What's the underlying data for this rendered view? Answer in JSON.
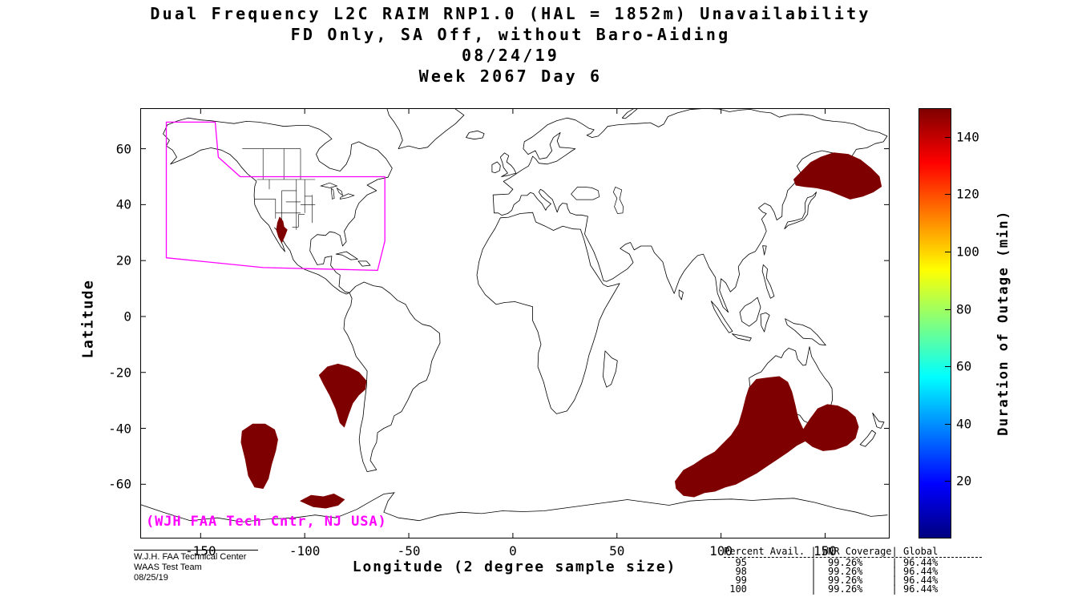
{
  "header": {
    "lines": [
      "Dual Frequency L2C RAIM RNP1.0 (HAL = 1852m) Unavailability",
      "FD Only, SA Off, without Baro-Aiding",
      "08/24/19",
      "Week 2067 Day 6"
    ]
  },
  "axes": {
    "xlabel": "Longitude (2 degree sample size)",
    "ylabel": "Latitude",
    "x_ticks": [
      -150,
      -100,
      -50,
      0,
      50,
      100,
      150
    ],
    "y_ticks": [
      60,
      40,
      20,
      0,
      -20,
      -40,
      -60
    ],
    "x_range": [
      -179,
      181
    ],
    "y_range": [
      -79.4,
      74.5
    ]
  },
  "colorbar": {
    "label": "Duration of Outage (min)",
    "ticks": [
      20,
      40,
      60,
      80,
      100,
      120,
      140
    ],
    "range": [
      0,
      150
    ],
    "colors": [
      "#00007F",
      "#0000FF",
      "#00FFFF",
      "#FFFF00",
      "#FF0000",
      "#7F0000"
    ],
    "stops_pct": [
      0,
      12.5,
      37.5,
      62.5,
      87.5,
      100
    ]
  },
  "annotations": {
    "credit": "(WJH FAA Tech Cntr, NJ USA)",
    "credit_color": "#FF00FF"
  },
  "footer": {
    "left_lines": [
      "W.J.H. FAA Technical Center",
      "WAAS Test Team",
      "08/25/19"
    ],
    "table": {
      "headers": [
        "Percent Avail.",
        "WNR Coverage",
        "Global"
      ],
      "rows": [
        [
          "95",
          "99.26%",
          "96.44%"
        ],
        [
          "98",
          "99.26%",
          "96.44%"
        ],
        [
          "99",
          "99.26%",
          "96.44%"
        ],
        [
          "100",
          "99.26%",
          "96.44%"
        ]
      ]
    }
  },
  "chart_data": {
    "type": "map",
    "title": "Dual Frequency L2C RAIM RNP1.0 (HAL = 1852m) Unavailability",
    "subtitle": "FD Only, SA Off, without Baro-Aiding",
    "date": "08/24/19",
    "week_day": "Week 2067 Day 6",
    "legend": "Duration of Outage (min), jet colormap 0-150",
    "outage_color": "#7F0000",
    "outage_value_min_minutes": 140,
    "coverage_boundary_color": "#FF00FF",
    "coverage_boundary_lonlat": [
      [
        -166.5,
        69.5
      ],
      [
        -143,
        69.5
      ],
      [
        -141.5,
        57
      ],
      [
        -131,
        50
      ],
      [
        -61.5,
        50
      ],
      [
        -61.5,
        27
      ],
      [
        -65,
        16.5
      ],
      [
        -120,
        17.5
      ],
      [
        -166.5,
        21
      ]
    ],
    "outage_regions_lonlat": [
      {
        "name": "arizona-sonora",
        "points": [
          [
            -112,
            35.5
          ],
          [
            -110.5,
            34
          ],
          [
            -110,
            32
          ],
          [
            -108.5,
            31
          ],
          [
            -109.5,
            29
          ],
          [
            -111,
            26.5
          ],
          [
            -112.5,
            28.5
          ],
          [
            -113.5,
            31
          ],
          [
            -113,
            33.5
          ]
        ]
      },
      {
        "name": "northwest-pacific-kamchatka",
        "points": [
          [
            135,
            49
          ],
          [
            139,
            52
          ],
          [
            143,
            55
          ],
          [
            148,
            57
          ],
          [
            154,
            58.5
          ],
          [
            161,
            58
          ],
          [
            167,
            56
          ],
          [
            172,
            53
          ],
          [
            176,
            50
          ],
          [
            177,
            46.5
          ],
          [
            173,
            44.5
          ],
          [
            168,
            43
          ],
          [
            162,
            42
          ],
          [
            157,
            43.5
          ],
          [
            152,
            45
          ],
          [
            146,
            46
          ],
          [
            140,
            46.5
          ],
          [
            136,
            47
          ]
        ]
      },
      {
        "name": "southeast-pacific",
        "points": [
          [
            -93,
            -21
          ],
          [
            -89,
            -18
          ],
          [
            -84,
            -17
          ],
          [
            -79,
            -18
          ],
          [
            -74,
            -20
          ],
          [
            -70.5,
            -23
          ],
          [
            -71,
            -26
          ],
          [
            -74,
            -28
          ],
          [
            -77,
            -31
          ],
          [
            -79,
            -35
          ],
          [
            -81,
            -39.5
          ],
          [
            -83,
            -38
          ],
          [
            -85,
            -33
          ],
          [
            -88,
            -28
          ],
          [
            -91,
            -24
          ]
        ]
      },
      {
        "name": "south-pacific",
        "points": [
          [
            -130,
            -41
          ],
          [
            -125,
            -38.5
          ],
          [
            -119,
            -38.5
          ],
          [
            -114.5,
            -40.5
          ],
          [
            -113,
            -44
          ],
          [
            -114,
            -48
          ],
          [
            -116,
            -53
          ],
          [
            -117.5,
            -58
          ],
          [
            -120,
            -61.5
          ],
          [
            -124,
            -61
          ],
          [
            -127,
            -57
          ],
          [
            -128.5,
            -51
          ],
          [
            -130.5,
            -45
          ]
        ]
      },
      {
        "name": "south-pacific-small",
        "points": [
          [
            -102,
            -66
          ],
          [
            -97,
            -64
          ],
          [
            -91,
            -64.5
          ],
          [
            -86,
            -63.5
          ],
          [
            -81,
            -65.5
          ],
          [
            -84,
            -67.5
          ],
          [
            -90,
            -68.5
          ],
          [
            -96,
            -68
          ]
        ]
      },
      {
        "name": "australia-indian-ocean-band",
        "points": [
          [
            78,
            -59
          ],
          [
            82,
            -55
          ],
          [
            87,
            -53
          ],
          [
            92,
            -50.5
          ],
          [
            97,
            -48.5
          ],
          [
            101,
            -45.5
          ],
          [
            105,
            -42.5
          ],
          [
            108.5,
            -38.5
          ],
          [
            110.5,
            -33.5
          ],
          [
            112,
            -29
          ],
          [
            113.5,
            -25.5
          ],
          [
            117,
            -22.5
          ],
          [
            122,
            -22
          ],
          [
            128,
            -21.5
          ],
          [
            132,
            -23.5
          ],
          [
            134,
            -27
          ],
          [
            135.5,
            -31.5
          ],
          [
            137,
            -36.5
          ],
          [
            139.5,
            -40.5
          ],
          [
            143,
            -36.5
          ],
          [
            146.5,
            -33
          ],
          [
            151,
            -31.5
          ],
          [
            156,
            -32
          ],
          [
            160.5,
            -33.5
          ],
          [
            164.5,
            -36
          ],
          [
            166,
            -39.5
          ],
          [
            164.5,
            -43.5
          ],
          [
            160.5,
            -46
          ],
          [
            155,
            -47.5
          ],
          [
            149,
            -48
          ],
          [
            144,
            -46.5
          ],
          [
            140.5,
            -44.5
          ],
          [
            136.5,
            -46
          ],
          [
            132,
            -48.5
          ],
          [
            127,
            -51
          ],
          [
            122,
            -53.5
          ],
          [
            117,
            -56
          ],
          [
            112,
            -58
          ],
          [
            107,
            -60
          ],
          [
            102,
            -61
          ],
          [
            97,
            -62.5
          ],
          [
            92,
            -63
          ],
          [
            87,
            -64.5
          ],
          [
            82,
            -64
          ],
          [
            78.5,
            -61.5
          ]
        ]
      }
    ],
    "availability_summary": {
      "levels": [
        95,
        98,
        99,
        100
      ],
      "wnr_coverage": [
        "99.26%",
        "99.26%",
        "99.26%",
        "99.26%"
      ],
      "global": [
        "96.44%",
        "96.44%",
        "96.44%",
        "96.44%"
      ]
    }
  }
}
